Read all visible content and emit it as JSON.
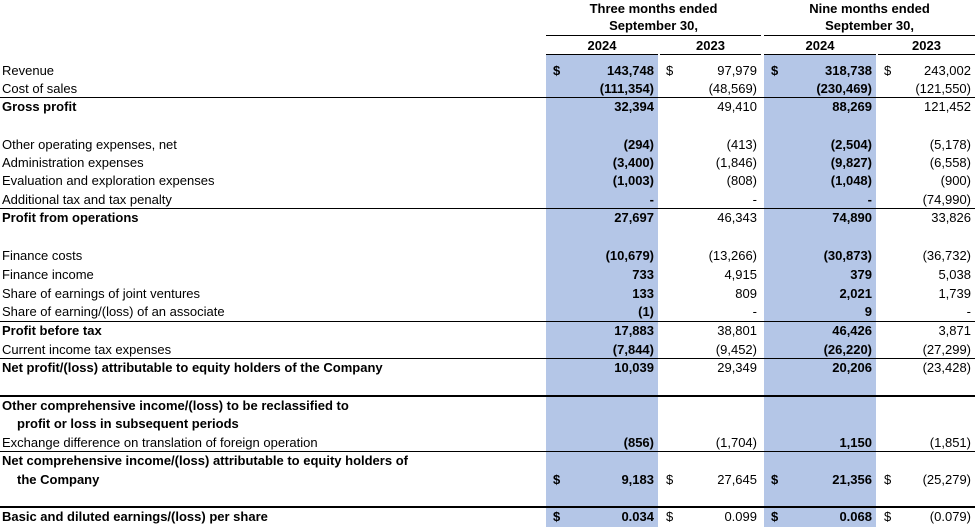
{
  "headers": {
    "period_three": "Three months ended",
    "period_three_sub": "September 30,",
    "period_nine": "Nine months ended",
    "period_nine_sub": "September 30,",
    "y2024": "2024",
    "y2023": "2023"
  },
  "currency_symbol": "$",
  "rows": [
    {
      "label": "Revenue",
      "values": [
        "143,748",
        "97,979",
        "318,738",
        "243,002"
      ],
      "label_bold": false,
      "cur": true
    },
    {
      "label": "Cost of sales",
      "values": [
        "(111,354)",
        "(48,569)",
        "(230,469)",
        "(121,550)"
      ],
      "label_bold": false
    },
    {
      "label": "Gross profit",
      "values": [
        "32,394",
        "49,410",
        "88,269",
        "121,452"
      ],
      "label_bold": true
    },
    {
      "label": "Other operating expenses, net",
      "values": [
        "(294)",
        "(413)",
        "(2,504)",
        "(5,178)"
      ],
      "label_bold": false
    },
    {
      "label": "Administration expenses",
      "values": [
        "(3,400)",
        "(1,846)",
        "(9,827)",
        "(6,558)"
      ],
      "label_bold": false
    },
    {
      "label": "Evaluation and exploration expenses",
      "values": [
        "(1,003)",
        "(808)",
        "(1,048)",
        "(900)"
      ],
      "label_bold": false
    },
    {
      "label": "Additional tax and tax penalty",
      "values": [
        "-",
        "-",
        "-",
        "(74,990)"
      ],
      "label_bold": false
    },
    {
      "label": "Profit from operations",
      "values": [
        "27,697",
        "46,343",
        "74,890",
        "33,826"
      ],
      "label_bold": true
    },
    {
      "label": "Finance costs",
      "values": [
        "(10,679)",
        "(13,266)",
        "(30,873)",
        "(36,732)"
      ],
      "label_bold": false
    },
    {
      "label": "Finance income",
      "values": [
        "733",
        "4,915",
        "379",
        "5,038"
      ],
      "label_bold": false
    },
    {
      "label": "Share of earnings of joint ventures",
      "values": [
        "133",
        "809",
        "2,021",
        "1,739"
      ],
      "label_bold": false
    },
    {
      "label": "Share of earning/(loss) of an associate",
      "values": [
        "(1)",
        "-",
        "9",
        "-"
      ],
      "label_bold": false
    },
    {
      "label": "Profit before tax",
      "values": [
        "17,883",
        "38,801",
        "46,426",
        "3,871"
      ],
      "label_bold": true
    },
    {
      "label": "Current income tax expenses",
      "values": [
        "(7,844)",
        "(9,452)",
        "(26,220)",
        "(27,299)"
      ],
      "label_bold": false
    },
    {
      "label": "Net profit/(loss) attributable to equity holders of the Company",
      "values": [
        "10,039",
        "29,349",
        "20,206",
        "(23,428)"
      ],
      "label_bold": true
    },
    {
      "label": "Other comprehensive income/(loss) to be reclassified to",
      "values": [
        "",
        "",
        "",
        ""
      ],
      "label_bold": true
    },
    {
      "label": "profit or loss in subsequent periods",
      "values": [
        "",
        "",
        "",
        ""
      ],
      "label_bold": true
    },
    {
      "label": "Exchange difference on translation of foreign operation",
      "values": [
        "(856)",
        "(1,704)",
        "1,150",
        "(1,851)"
      ],
      "label_bold": false
    },
    {
      "label": "Net comprehensive income/(loss) attributable to equity holders of",
      "values": [
        "",
        "",
        "",
        ""
      ],
      "label_bold": true
    },
    {
      "label": "the Company",
      "values": [
        "9,183",
        "27,645",
        "21,356",
        "(25,279)"
      ],
      "label_bold": true,
      "cur": true
    },
    {
      "label": "Basic and diluted earnings/(loss) per share",
      "values": [
        "0.034",
        "0.099",
        "0.068",
        "(0.079)"
      ],
      "label_bold": true,
      "cur": true
    }
  ]
}
